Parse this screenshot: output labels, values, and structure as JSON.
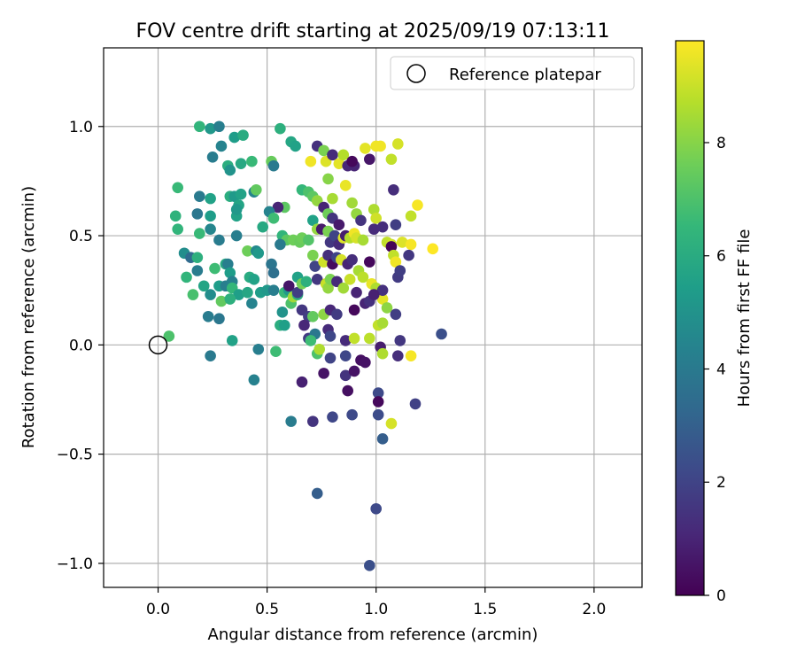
{
  "chart_data": {
    "type": "scatter",
    "title": "FOV centre drift starting at 2025/09/19 07:13:11",
    "xlabel": "Angular distance from reference (arcmin)",
    "ylabel": "Rotation from reference (arcmin)",
    "xlim": [
      -0.25,
      2.22
    ],
    "ylim": [
      -1.11,
      1.36
    ],
    "xticks": [
      0.0,
      0.5,
      1.0,
      1.5,
      2.0
    ],
    "xtick_labels": [
      "0.0",
      "0.5",
      "1.0",
      "1.5",
      "2.0"
    ],
    "yticks": [
      -1.0,
      -0.5,
      0.0,
      0.5,
      1.0
    ],
    "ytick_labels": [
      "−1.0",
      "−0.5",
      "0.0",
      "0.5",
      "1.0"
    ],
    "grid": true,
    "legend": {
      "location": "top-right",
      "entries": [
        {
          "label": "Reference platepar",
          "marker": "open-circle"
        }
      ]
    },
    "reference_point": {
      "x": 0.0,
      "y": 0.0,
      "label": "Reference platepar"
    },
    "colorbar": {
      "label": "Hours from first FF file",
      "colormap": "viridis",
      "min": 0,
      "max": 9.8,
      "ticks": [
        0,
        2,
        4,
        6,
        8
      ],
      "tick_labels": [
        "0",
        "2",
        "4",
        "6",
        "8"
      ],
      "stops": [
        "#440154",
        "#482878",
        "#3e4989",
        "#31688e",
        "#26828e",
        "#1f9e89",
        "#35b779",
        "#6ece58",
        "#b5de2b",
        "#fde725"
      ]
    },
    "points": [
      {
        "x": 0.19,
        "y": 1.0,
        "h": 6.4
      },
      {
        "x": 0.24,
        "y": 0.99,
        "h": 5.2
      },
      {
        "x": 0.28,
        "y": 1.0,
        "h": 4.2
      },
      {
        "x": 0.35,
        "y": 0.95,
        "h": 5.4
      },
      {
        "x": 0.39,
        "y": 0.96,
        "h": 6.0
      },
      {
        "x": 0.29,
        "y": 0.91,
        "h": 4.4
      },
      {
        "x": 0.25,
        "y": 0.86,
        "h": 4.1
      },
      {
        "x": 0.32,
        "y": 0.82,
        "h": 6.1
      },
      {
        "x": 0.33,
        "y": 0.8,
        "h": 5.0
      },
      {
        "x": 0.38,
        "y": 0.83,
        "h": 5.9
      },
      {
        "x": 0.43,
        "y": 0.84,
        "h": 6.6
      },
      {
        "x": 0.52,
        "y": 0.84,
        "h": 7.5
      },
      {
        "x": 0.53,
        "y": 0.82,
        "h": 4.0
      },
      {
        "x": 0.56,
        "y": 0.99,
        "h": 6.2
      },
      {
        "x": 0.61,
        "y": 0.93,
        "h": 5.8
      },
      {
        "x": 0.63,
        "y": 0.91,
        "h": 5.6
      },
      {
        "x": 0.09,
        "y": 0.72,
        "h": 6.6
      },
      {
        "x": 0.19,
        "y": 0.68,
        "h": 4.0
      },
      {
        "x": 0.24,
        "y": 0.67,
        "h": 5.6
      },
      {
        "x": 0.33,
        "y": 0.68,
        "h": 6.1
      },
      {
        "x": 0.35,
        "y": 0.68,
        "h": 5.3
      },
      {
        "x": 0.38,
        "y": 0.69,
        "h": 5.6
      },
      {
        "x": 0.37,
        "y": 0.64,
        "h": 5.7
      },
      {
        "x": 0.44,
        "y": 0.7,
        "h": 4.4
      },
      {
        "x": 0.45,
        "y": 0.71,
        "h": 7.4
      },
      {
        "x": 0.58,
        "y": 0.63,
        "h": 7.3
      },
      {
        "x": 0.55,
        "y": 0.63,
        "h": 1.0
      },
      {
        "x": 0.08,
        "y": 0.59,
        "h": 6.3
      },
      {
        "x": 0.18,
        "y": 0.6,
        "h": 3.9
      },
      {
        "x": 0.24,
        "y": 0.59,
        "h": 5.4
      },
      {
        "x": 0.36,
        "y": 0.59,
        "h": 5.6
      },
      {
        "x": 0.36,
        "y": 0.62,
        "h": 5.2
      },
      {
        "x": 0.09,
        "y": 0.53,
        "h": 6.4
      },
      {
        "x": 0.19,
        "y": 0.51,
        "h": 6.6
      },
      {
        "x": 0.24,
        "y": 0.53,
        "h": 4.5
      },
      {
        "x": 0.28,
        "y": 0.48,
        "h": 4.1
      },
      {
        "x": 0.36,
        "y": 0.5,
        "h": 4.2
      },
      {
        "x": 0.48,
        "y": 0.54,
        "h": 5.9
      },
      {
        "x": 0.51,
        "y": 0.61,
        "h": 4.4
      },
      {
        "x": 0.53,
        "y": 0.58,
        "h": 6.7
      },
      {
        "x": 0.57,
        "y": 0.5,
        "h": 6.4
      },
      {
        "x": 0.59,
        "y": 0.48,
        "h": 7.3
      },
      {
        "x": 0.12,
        "y": 0.42,
        "h": 4.8
      },
      {
        "x": 0.15,
        "y": 0.4,
        "h": 3.4
      },
      {
        "x": 0.18,
        "y": 0.4,
        "h": 6.2
      },
      {
        "x": 0.13,
        "y": 0.31,
        "h": 6.4
      },
      {
        "x": 0.18,
        "y": 0.34,
        "h": 4.1
      },
      {
        "x": 0.26,
        "y": 0.35,
        "h": 6.7
      },
      {
        "x": 0.31,
        "y": 0.37,
        "h": 5.9
      },
      {
        "x": 0.32,
        "y": 0.37,
        "h": 4.2
      },
      {
        "x": 0.41,
        "y": 0.43,
        "h": 7.6
      },
      {
        "x": 0.45,
        "y": 0.43,
        "h": 4.6
      },
      {
        "x": 0.46,
        "y": 0.42,
        "h": 5.2
      },
      {
        "x": 0.52,
        "y": 0.37,
        "h": 3.8
      },
      {
        "x": 0.53,
        "y": 0.33,
        "h": 3.6
      },
      {
        "x": 0.56,
        "y": 0.46,
        "h": 4.0
      },
      {
        "x": 0.21,
        "y": 0.27,
        "h": 5.7
      },
      {
        "x": 0.24,
        "y": 0.23,
        "h": 4.8
      },
      {
        "x": 0.28,
        "y": 0.27,
        "h": 5.4
      },
      {
        "x": 0.31,
        "y": 0.27,
        "h": 4.2
      },
      {
        "x": 0.33,
        "y": 0.33,
        "h": 5.4
      },
      {
        "x": 0.34,
        "y": 0.29,
        "h": 4.3
      },
      {
        "x": 0.34,
        "y": 0.26,
        "h": 6.5
      },
      {
        "x": 0.37,
        "y": 0.23,
        "h": 5.5
      },
      {
        "x": 0.41,
        "y": 0.24,
        "h": 5.8
      },
      {
        "x": 0.42,
        "y": 0.31,
        "h": 6.0
      },
      {
        "x": 0.43,
        "y": 0.19,
        "h": 4.4
      },
      {
        "x": 0.44,
        "y": 0.3,
        "h": 5.6
      },
      {
        "x": 0.47,
        "y": 0.24,
        "h": 5.4
      },
      {
        "x": 0.5,
        "y": 0.25,
        "h": 5.2
      },
      {
        "x": 0.16,
        "y": 0.23,
        "h": 6.9
      },
      {
        "x": 0.29,
        "y": 0.2,
        "h": 7.4
      },
      {
        "x": 0.33,
        "y": 0.21,
        "h": 6.2
      },
      {
        "x": 0.53,
        "y": 0.25,
        "h": 4.2
      },
      {
        "x": 0.58,
        "y": 0.24,
        "h": 6.6
      },
      {
        "x": 0.6,
        "y": 0.25,
        "h": 5.3
      },
      {
        "x": 0.61,
        "y": 0.19,
        "h": 7.0
      },
      {
        "x": 0.62,
        "y": 0.22,
        "h": 8.4
      },
      {
        "x": 0.64,
        "y": 0.23,
        "h": 6.2
      },
      {
        "x": 0.23,
        "y": 0.13,
        "h": 4.1
      },
      {
        "x": 0.28,
        "y": 0.12,
        "h": 3.9
      },
      {
        "x": 0.57,
        "y": 0.15,
        "h": 5.0
      },
      {
        "x": 0.56,
        "y": 0.09,
        "h": 6.1
      },
      {
        "x": 0.58,
        "y": 0.09,
        "h": 5.5
      },
      {
        "x": 0.34,
        "y": 0.02,
        "h": 5.6
      },
      {
        "x": 0.05,
        "y": 0.04,
        "h": 7.0
      },
      {
        "x": 0.24,
        "y": -0.05,
        "h": 4.0
      },
      {
        "x": 0.46,
        "y": -0.02,
        "h": 4.2
      },
      {
        "x": 0.54,
        "y": -0.03,
        "h": 6.7
      },
      {
        "x": 0.44,
        "y": -0.16,
        "h": 4.3
      },
      {
        "x": 0.6,
        "y": 0.27,
        "h": 0.6
      },
      {
        "x": 0.64,
        "y": 0.24,
        "h": 1.8
      },
      {
        "x": 0.64,
        "y": 0.31,
        "h": 5.6
      },
      {
        "x": 0.66,
        "y": 0.28,
        "h": 7.7
      },
      {
        "x": 0.68,
        "y": 0.29,
        "h": 6.2
      },
      {
        "x": 0.62,
        "y": 0.48,
        "h": 7.6
      },
      {
        "x": 0.65,
        "y": 0.47,
        "h": 7.5
      },
      {
        "x": 0.66,
        "y": 0.49,
        "h": 7.6
      },
      {
        "x": 0.69,
        "y": 0.48,
        "h": 7.1
      },
      {
        "x": 0.71,
        "y": 0.57,
        "h": 5.6
      },
      {
        "x": 0.73,
        "y": 0.53,
        "h": 8.2
      },
      {
        "x": 0.66,
        "y": 0.71,
        "h": 6.5
      },
      {
        "x": 0.69,
        "y": 0.7,
        "h": 7.0
      },
      {
        "x": 0.71,
        "y": 0.68,
        "h": 7.3
      },
      {
        "x": 0.73,
        "y": 0.66,
        "h": 8.2
      },
      {
        "x": 0.7,
        "y": 0.84,
        "h": 9.6
      },
      {
        "x": 0.71,
        "y": 0.41,
        "h": 7.8
      },
      {
        "x": 0.73,
        "y": 0.91,
        "h": 1.4
      },
      {
        "x": 0.76,
        "y": 0.89,
        "h": 7.8
      },
      {
        "x": 0.77,
        "y": 0.84,
        "h": 9.3
      },
      {
        "x": 0.78,
        "y": 0.76,
        "h": 8.0
      },
      {
        "x": 0.8,
        "y": 0.87,
        "h": 1.2
      },
      {
        "x": 0.83,
        "y": 0.83,
        "h": 9.4
      },
      {
        "x": 0.85,
        "y": 0.87,
        "h": 8.7
      },
      {
        "x": 0.87,
        "y": 0.82,
        "h": 1.1
      },
      {
        "x": 0.9,
        "y": 0.82,
        "h": 1.0
      },
      {
        "x": 0.89,
        "y": 0.84,
        "h": 0.2
      },
      {
        "x": 0.97,
        "y": 0.85,
        "h": 0.6
      },
      {
        "x": 0.95,
        "y": 0.9,
        "h": 9.4
      },
      {
        "x": 1.0,
        "y": 0.91,
        "h": 9.6
      },
      {
        "x": 1.02,
        "y": 0.91,
        "h": 9.6
      },
      {
        "x": 1.1,
        "y": 0.92,
        "h": 9.2
      },
      {
        "x": 1.07,
        "y": 0.85,
        "h": 8.9
      },
      {
        "x": 0.86,
        "y": 0.73,
        "h": 9.5
      },
      {
        "x": 0.8,
        "y": 0.67,
        "h": 8.5
      },
      {
        "x": 0.76,
        "y": 0.63,
        "h": 1.0
      },
      {
        "x": 0.78,
        "y": 0.6,
        "h": 7.6
      },
      {
        "x": 0.8,
        "y": 0.58,
        "h": 1.5
      },
      {
        "x": 0.83,
        "y": 0.55,
        "h": 0.7
      },
      {
        "x": 0.89,
        "y": 0.65,
        "h": 8.4
      },
      {
        "x": 0.91,
        "y": 0.6,
        "h": 8.2
      },
      {
        "x": 0.93,
        "y": 0.57,
        "h": 1.5
      },
      {
        "x": 0.99,
        "y": 0.62,
        "h": 8.6
      },
      {
        "x": 1.0,
        "y": 0.58,
        "h": 9.1
      },
      {
        "x": 1.08,
        "y": 0.71,
        "h": 1.3
      },
      {
        "x": 1.09,
        "y": 0.55,
        "h": 1.8
      },
      {
        "x": 1.16,
        "y": 0.59,
        "h": 8.9
      },
      {
        "x": 1.19,
        "y": 0.64,
        "h": 9.7
      },
      {
        "x": 0.75,
        "y": 0.53,
        "h": 0.7
      },
      {
        "x": 0.78,
        "y": 0.52,
        "h": 7.8
      },
      {
        "x": 0.79,
        "y": 0.47,
        "h": 1.6
      },
      {
        "x": 0.81,
        "y": 0.5,
        "h": 2.0
      },
      {
        "x": 0.83,
        "y": 0.46,
        "h": 1.2
      },
      {
        "x": 0.85,
        "y": 0.49,
        "h": 9.3
      },
      {
        "x": 0.86,
        "y": 0.5,
        "h": 0.8
      },
      {
        "x": 0.88,
        "y": 0.49,
        "h": 8.7
      },
      {
        "x": 0.9,
        "y": 0.51,
        "h": 9.6
      },
      {
        "x": 0.91,
        "y": 0.49,
        "h": 9.2
      },
      {
        "x": 0.94,
        "y": 0.48,
        "h": 8.5
      },
      {
        "x": 0.99,
        "y": 0.53,
        "h": 1.2
      },
      {
        "x": 1.03,
        "y": 0.54,
        "h": 1.3
      },
      {
        "x": 1.05,
        "y": 0.47,
        "h": 8.9
      },
      {
        "x": 1.07,
        "y": 0.46,
        "h": 9.1
      },
      {
        "x": 1.12,
        "y": 0.47,
        "h": 9.3
      },
      {
        "x": 1.16,
        "y": 0.46,
        "h": 9.7
      },
      {
        "x": 1.07,
        "y": 0.45,
        "h": 0.1
      },
      {
        "x": 1.08,
        "y": 0.41,
        "h": 8.9
      },
      {
        "x": 1.09,
        "y": 0.38,
        "h": 9.6
      },
      {
        "x": 1.15,
        "y": 0.41,
        "h": 1.6
      },
      {
        "x": 1.26,
        "y": 0.44,
        "h": 9.8
      },
      {
        "x": 0.72,
        "y": 0.36,
        "h": 2.0
      },
      {
        "x": 0.76,
        "y": 0.38,
        "h": 9.1
      },
      {
        "x": 0.78,
        "y": 0.41,
        "h": 1.3
      },
      {
        "x": 0.8,
        "y": 0.37,
        "h": 0.3
      },
      {
        "x": 0.82,
        "y": 0.4,
        "h": 2.0
      },
      {
        "x": 0.84,
        "y": 0.39,
        "h": 9.2
      },
      {
        "x": 0.87,
        "y": 0.37,
        "h": 1.0
      },
      {
        "x": 0.89,
        "y": 0.39,
        "h": 1.3
      },
      {
        "x": 0.92,
        "y": 0.34,
        "h": 8.5
      },
      {
        "x": 0.97,
        "y": 0.38,
        "h": 0.2
      },
      {
        "x": 0.73,
        "y": 0.3,
        "h": 1.6
      },
      {
        "x": 0.77,
        "y": 0.28,
        "h": 9.0
      },
      {
        "x": 0.78,
        "y": 0.26,
        "h": 8.2
      },
      {
        "x": 0.79,
        "y": 0.3,
        "h": 7.8
      },
      {
        "x": 0.82,
        "y": 0.29,
        "h": 1.2
      },
      {
        "x": 0.85,
        "y": 0.26,
        "h": 8.4
      },
      {
        "x": 0.88,
        "y": 0.3,
        "h": 9.0
      },
      {
        "x": 0.91,
        "y": 0.24,
        "h": 1.0
      },
      {
        "x": 0.94,
        "y": 0.31,
        "h": 8.8
      },
      {
        "x": 0.98,
        "y": 0.28,
        "h": 9.5
      },
      {
        "x": 1.0,
        "y": 0.26,
        "h": 8.6
      },
      {
        "x": 1.03,
        "y": 0.21,
        "h": 9.4
      },
      {
        "x": 1.1,
        "y": 0.31,
        "h": 1.7
      },
      {
        "x": 1.11,
        "y": 0.34,
        "h": 1.8
      },
      {
        "x": 1.03,
        "y": 0.25,
        "h": 1.4
      },
      {
        "x": 0.66,
        "y": 0.16,
        "h": 1.6
      },
      {
        "x": 0.69,
        "y": 0.13,
        "h": 1.8
      },
      {
        "x": 0.71,
        "y": 0.13,
        "h": 7.4
      },
      {
        "x": 0.76,
        "y": 0.14,
        "h": 8.1
      },
      {
        "x": 0.79,
        "y": 0.16,
        "h": 1.1
      },
      {
        "x": 0.82,
        "y": 0.14,
        "h": 1.7
      },
      {
        "x": 0.9,
        "y": 0.16,
        "h": 0.2
      },
      {
        "x": 0.95,
        "y": 0.19,
        "h": 1.0
      },
      {
        "x": 0.97,
        "y": 0.2,
        "h": 1.4
      },
      {
        "x": 0.99,
        "y": 0.23,
        "h": 0.9
      },
      {
        "x": 1.05,
        "y": 0.17,
        "h": 8.1
      },
      {
        "x": 1.09,
        "y": 0.14,
        "h": 1.8
      },
      {
        "x": 1.01,
        "y": 0.09,
        "h": 8.9
      },
      {
        "x": 1.03,
        "y": 0.1,
        "h": 8.5
      },
      {
        "x": 0.67,
        "y": 0.09,
        "h": 1.1
      },
      {
        "x": 0.69,
        "y": 0.03,
        "h": 1.7
      },
      {
        "x": 0.72,
        "y": 0.05,
        "h": 3.9
      },
      {
        "x": 0.7,
        "y": 0.02,
        "h": 6.7
      },
      {
        "x": 0.73,
        "y": -0.04,
        "h": 7.0
      },
      {
        "x": 0.74,
        "y": -0.02,
        "h": 8.6
      },
      {
        "x": 0.78,
        "y": 0.07,
        "h": 1.2
      },
      {
        "x": 0.79,
        "y": 0.04,
        "h": 2.1
      },
      {
        "x": 0.79,
        "y": -0.06,
        "h": 2.0
      },
      {
        "x": 0.86,
        "y": 0.02,
        "h": 1.2
      },
      {
        "x": 0.9,
        "y": 0.03,
        "h": 8.9
      },
      {
        "x": 0.93,
        "y": -0.07,
        "h": 0.4
      },
      {
        "x": 0.95,
        "y": -0.08,
        "h": 0.5
      },
      {
        "x": 0.97,
        "y": 0.03,
        "h": 8.8
      },
      {
        "x": 1.02,
        "y": -0.01,
        "h": 0.8
      },
      {
        "x": 1.03,
        "y": -0.04,
        "h": 8.6
      },
      {
        "x": 1.11,
        "y": 0.02,
        "h": 1.6
      },
      {
        "x": 1.1,
        "y": -0.05,
        "h": 1.3
      },
      {
        "x": 1.16,
        "y": -0.05,
        "h": 9.7
      },
      {
        "x": 1.3,
        "y": 0.05,
        "h": 2.4
      },
      {
        "x": 0.86,
        "y": -0.05,
        "h": 2.1
      },
      {
        "x": 0.76,
        "y": -0.13,
        "h": 0.5
      },
      {
        "x": 0.86,
        "y": -0.14,
        "h": 1.5
      },
      {
        "x": 0.9,
        "y": -0.12,
        "h": 0.5
      },
      {
        "x": 0.66,
        "y": -0.17,
        "h": 0.9
      },
      {
        "x": 0.87,
        "y": -0.21,
        "h": 0.4
      },
      {
        "x": 1.01,
        "y": -0.22,
        "h": 2.2
      },
      {
        "x": 1.01,
        "y": -0.26,
        "h": 0.2
      },
      {
        "x": 1.18,
        "y": -0.27,
        "h": 1.9
      },
      {
        "x": 0.61,
        "y": -0.35,
        "h": 4.1
      },
      {
        "x": 0.71,
        "y": -0.35,
        "h": 1.5
      },
      {
        "x": 0.8,
        "y": -0.33,
        "h": 2.1
      },
      {
        "x": 0.89,
        "y": -0.32,
        "h": 2.2
      },
      {
        "x": 1.01,
        "y": -0.32,
        "h": 2.3
      },
      {
        "x": 1.07,
        "y": -0.36,
        "h": 9.2
      },
      {
        "x": 1.03,
        "y": -0.43,
        "h": 2.9
      },
      {
        "x": 0.73,
        "y": -0.68,
        "h": 2.9
      },
      {
        "x": 1.0,
        "y": -0.75,
        "h": 2.2
      },
      {
        "x": 0.97,
        "y": -1.01,
        "h": 2.4
      }
    ]
  }
}
